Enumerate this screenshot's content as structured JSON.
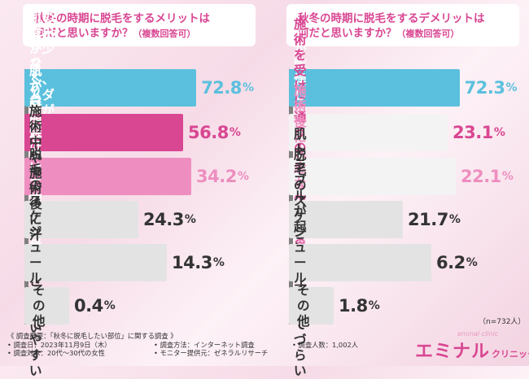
{
  "left_title": {
    "line1": "秋冬の時期に脱毛をするメリットは",
    "line2": "何だと思いますか？",
    "note": "（複数回答可）"
  },
  "right_title": {
    "line1": "秋冬の時期に脱毛をするデメリットは",
    "line2": "何だと思いますか？",
    "note": "（複数回答可）"
  },
  "n_label": "（n=732人）",
  "footer": {
    "overview": "《 調査概要：「秋冬に脱毛したい部位」に関する調査 》",
    "date": "• 調査日：2023年11月9日（木）",
    "target": "• 調査対象：20代〜30代の女性",
    "method": "• 調査方法：インターネット調査",
    "monitor": "• モニター提供元：ゼネラルリサーチ",
    "count": "• 調査人数：1,002人"
  },
  "logo": {
    "main": "エミナル",
    "sub": "クリニック",
    "script": "eminal clinic"
  },
  "colors": {
    "blue": "#5bc0dd",
    "magenta": "#d94692",
    "pink": "#ee8ec0",
    "gray": "#e3e3e3",
    "dark": "#333333"
  },
  "chart_data": [
    {
      "type": "bar",
      "orientation": "horizontal",
      "title": "秋冬の時期に脱毛をするメリットは何だと思いますか？（複数回答可）",
      "categories": [
        "肌の露出が少なく、\nムダ毛が目立たない",
        "肌が日に焼けにくい",
        "じっくり時間をかけて\n施術が受けられる",
        "施術中や施術後に\n汗をかきにくい",
        "脱毛のスケジュールが\n立てやすい",
        "その他"
      ],
      "values": [
        72.8,
        56.8,
        34.2,
        24.3,
        14.3,
        0.4
      ],
      "value_text": [
        {
          "num": "72.8",
          "pct": "%"
        },
        {
          "num": "56.8",
          "pct": "%"
        },
        {
          "num": "34.2",
          "pct": "%"
        },
        {
          "num": "24.3",
          "pct": "%"
        },
        {
          "num": "14.3",
          "pct": "%"
        },
        {
          "num": "0.4",
          "pct": "%"
        }
      ],
      "bar_colors": [
        "#5bc0dd",
        "#d94692",
        "#ee8ec0",
        "#e3e3e3",
        "#e3e3e3",
        "#e3e3e3"
      ],
      "label_colors": [
        "#ffffff",
        "#ffffff",
        "#ffffff",
        "#333333",
        "#333333",
        "#333333"
      ],
      "value_colors": [
        "#5bc0dd",
        "#d94692",
        "#ee8ec0",
        "#333333",
        "#333333",
        "#333333"
      ],
      "xlim": [
        0,
        100
      ]
    },
    {
      "type": "bar",
      "orientation": "horizontal",
      "title": "秋冬の時期に脱毛をするデメリットは何だと思いますか？（複数回答可）",
      "categories": [
        "肌が乾燥しやすい",
        "施術を受けに\n通うのが億劫になる",
        "施術後に入念な\nケアが必要",
        "肌トラブルが起こりやすい",
        "脱毛のスケジュールが\n立てづらい",
        "その他"
      ],
      "values": [
        72.3,
        23.1,
        22.1,
        21.7,
        6.2,
        1.8
      ],
      "value_text": [
        {
          "num": "72.3",
          "pct": "%"
        },
        {
          "num": "23.1",
          "pct": "%"
        },
        {
          "num": "22.1",
          "pct": "%"
        },
        {
          "num": "21.7",
          "pct": "%"
        },
        {
          "num": "6.2",
          "pct": "%"
        },
        {
          "num": "1.8",
          "pct": "%"
        }
      ],
      "bar_colors": [
        "#5bc0dd",
        "#d94692",
        "#ee8ec0",
        "#e3e3e3",
        "#e3e3e3",
        "#e3e3e3"
      ],
      "label_colors": [
        "#ffffff",
        "#d94692",
        "#ee8ec0",
        "#333333",
        "#333333",
        "#333333"
      ],
      "value_colors": [
        "#5bc0dd",
        "#d94692",
        "#ee8ec0",
        "#333333",
        "#333333",
        "#333333"
      ],
      "xlim": [
        0,
        100
      ]
    }
  ]
}
